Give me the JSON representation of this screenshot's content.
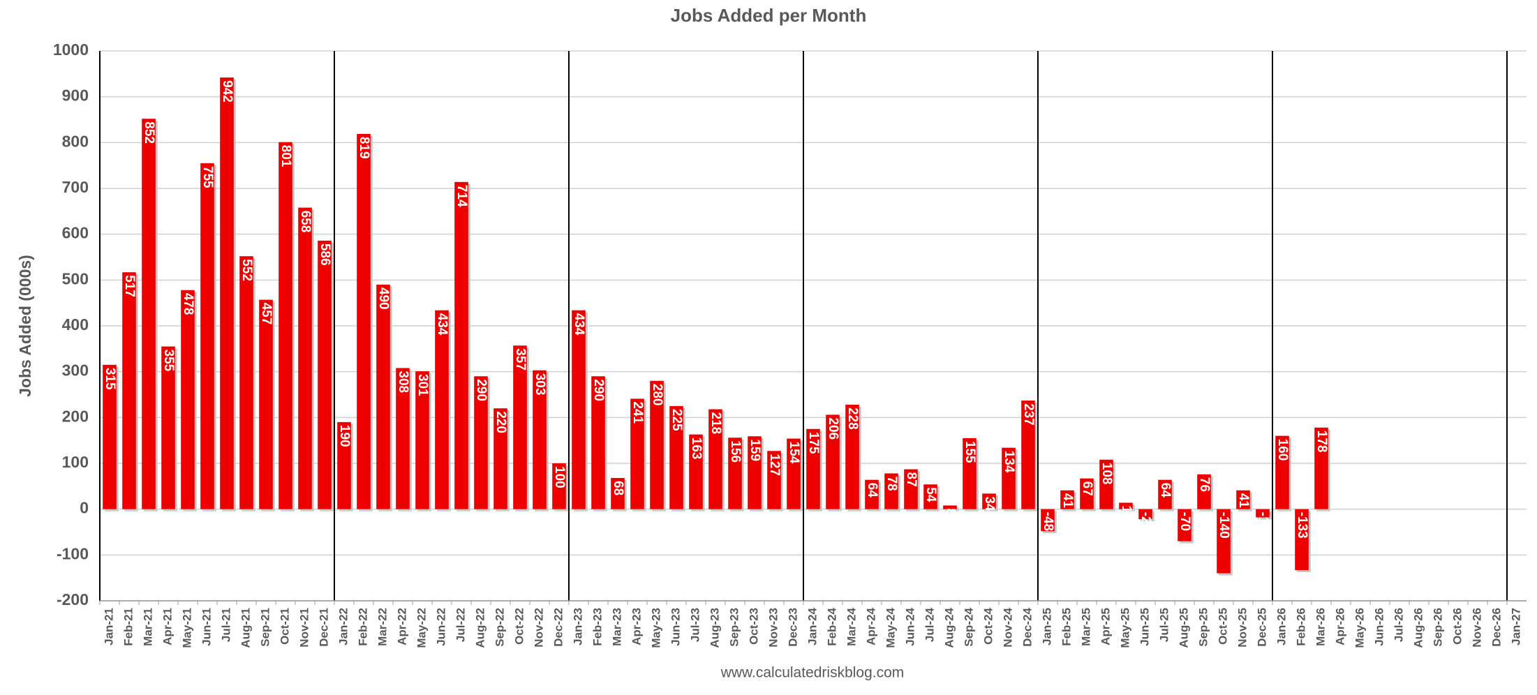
{
  "chart_data": {
    "type": "bar",
    "title": "Jobs Added per Month",
    "y_label": "Jobs Added (000s)",
    "source": "www.calculatedriskblog.com",
    "categories": [
      "Jan-21",
      "Feb-21",
      "Mar-21",
      "Apr-21",
      "May-21",
      "Jun-21",
      "Jul-21",
      "Aug-21",
      "Sep-21",
      "Oct-21",
      "Nov-21",
      "Dec-21",
      "Jan-22",
      "Feb-22",
      "Mar-22",
      "Apr-22",
      "May-22",
      "Jun-22",
      "Jul-22",
      "Aug-22",
      "Sep-22",
      "Oct-22",
      "Nov-22",
      "Dec-22",
      "Jan-23",
      "Feb-23",
      "Mar-23",
      "Apr-23",
      "May-23",
      "Jun-23",
      "Jul-23",
      "Aug-23",
      "Sep-23",
      "Oct-23",
      "Nov-23",
      "Dec-23",
      "Jan-24",
      "Feb-24",
      "Mar-24",
      "Apr-24",
      "May-24",
      "Jun-24",
      "Jul-24",
      "Aug-24",
      "Sep-24",
      "Oct-24",
      "Nov-24",
      "Dec-24",
      "Jan-25",
      "Feb-25",
      "Mar-25",
      "Apr-25",
      "May-25",
      "Jun-25",
      "Jul-25",
      "Aug-25",
      "Sep-25",
      "Oct-25",
      "Nov-25",
      "Dec-25",
      "Jan-26",
      "Feb-26",
      "Mar-26",
      "Apr-26",
      "May-26",
      "Jun-26",
      "Jul-26",
      "Aug-26",
      "Sep-26",
      "Oct-26",
      "Nov-26",
      "Dec-26",
      "Jan-27"
    ],
    "values": [
      315,
      517,
      852,
      355,
      478,
      755,
      942,
      552,
      457,
      801,
      658,
      586,
      190,
      819,
      490,
      308,
      301,
      434,
      714,
      290,
      220,
      357,
      303,
      100,
      434,
      290,
      68,
      241,
      280,
      225,
      163,
      218,
      156,
      159,
      127,
      154,
      175,
      206,
      228,
      64,
      78,
      87,
      54,
      8,
      155,
      34,
      134,
      237,
      -48,
      41,
      67,
      108,
      14,
      -22,
      64,
      -70,
      76,
      -140,
      41,
      -18,
      160,
      -133,
      178,
      null,
      null,
      null,
      null,
      null,
      null,
      null,
      null,
      null,
      null
    ],
    "color": "#ee0000",
    "ylim": [
      -200,
      1000
    ],
    "yticks": [
      -200,
      -100,
      0,
      100,
      200,
      300,
      400,
      500,
      600,
      700,
      800,
      900,
      1000
    ],
    "grid": true
  }
}
